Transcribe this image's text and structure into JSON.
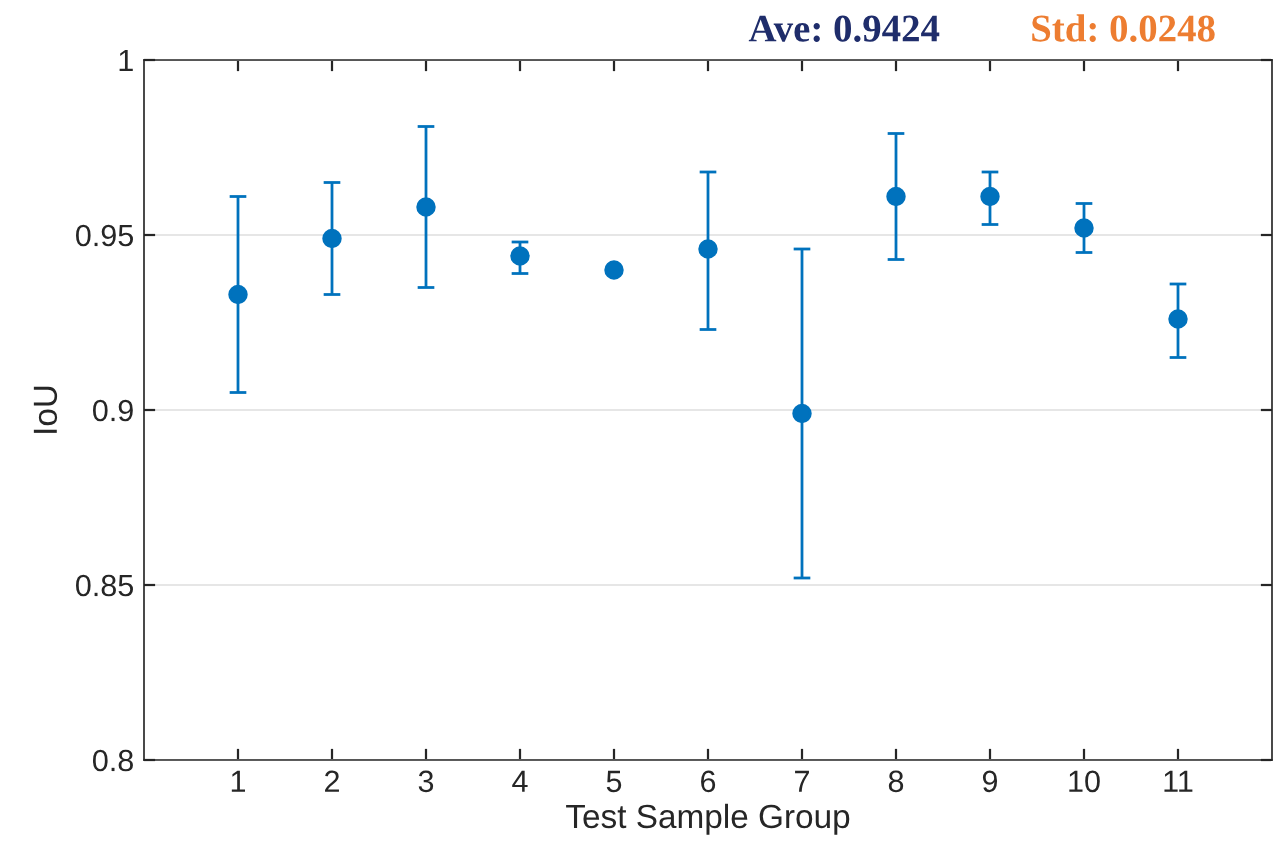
{
  "chart_data": {
    "type": "scatter",
    "xlabel": "Test Sample Group",
    "ylabel": "IoU",
    "annotations": [
      "Ave: 0.9424",
      "Std: 0.0248"
    ],
    "x": [
      1,
      2,
      3,
      4,
      5,
      6,
      7,
      8,
      9,
      10,
      11
    ],
    "series": [
      {
        "color": "#0072bd",
        "values": [
          0.933,
          0.949,
          0.958,
          0.944,
          0.94,
          0.946,
          0.899,
          0.961,
          0.961,
          0.952,
          0.926
        ],
        "errors": [
          [
            0.905,
            0.961
          ],
          [
            0.933,
            0.965
          ],
          [
            0.935,
            0.981
          ],
          [
            0.939,
            0.948
          ],
          null,
          [
            0.923,
            0.968
          ],
          [
            0.852,
            0.946
          ],
          [
            0.943,
            0.979
          ],
          [
            0.953,
            0.968
          ],
          [
            0.945,
            0.959
          ],
          [
            0.915,
            0.936
          ]
        ]
      }
    ],
    "xlim": [
      0,
      12
    ],
    "xticks": [
      1,
      2,
      3,
      4,
      5,
      6,
      7,
      8,
      9,
      10,
      11
    ],
    "ylim": [
      0.8,
      1
    ],
    "yticks": [
      0.8,
      0.85,
      0.9,
      0.95,
      1
    ],
    "grid": "y",
    "marker": "circle"
  }
}
